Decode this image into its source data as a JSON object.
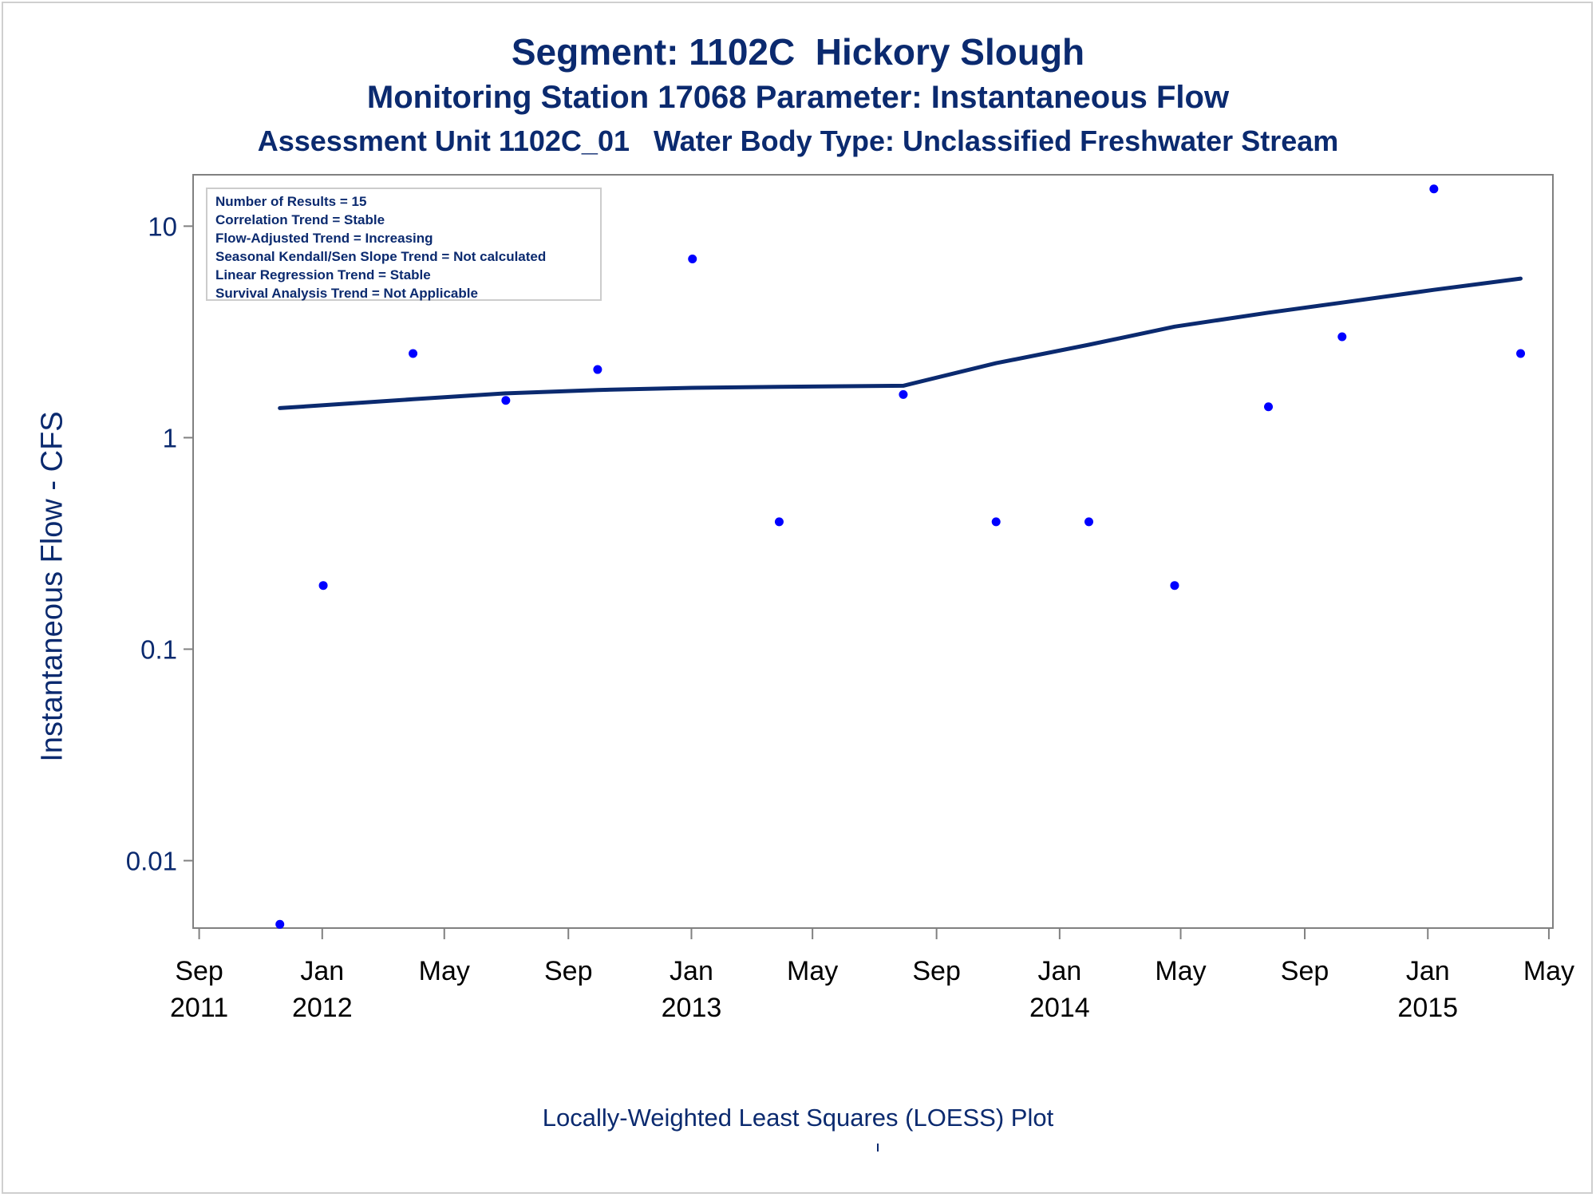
{
  "titles": {
    "line1": "Segment: 1102C  Hickory Slough",
    "line2": "Monitoring Station 17068 Parameter: Instantaneous Flow",
    "line3": "Assessment Unit 1102C_01   Water Body Type: Unclassified Freshwater Stream"
  },
  "footnote": "Locally-Weighted Least Squares (LOESS) Plot",
  "legend": [
    "Number of Results = 15",
    "Correlation Trend = Stable",
    "Flow-Adjusted Trend = Increasing",
    "Seasonal Kendall/Sen Slope Trend = Not calculated",
    "Linear Regression Trend = Stable",
    "Survival Analysis Trend = Not Applicable"
  ],
  "colors": {
    "text": "#0b2a6f",
    "points": "#0000ff",
    "line": "#0b2a6f",
    "axis": "#808080"
  },
  "chart_data": {
    "type": "scatter",
    "ylabel": "Instantaneous Flow - CFS",
    "xlabel": "",
    "yscale": "log",
    "ylim": [
      0.0048,
      17.5
    ],
    "xlim": [
      "2011-08-26",
      "2015-05-05"
    ],
    "grid": false,
    "legend_position": "top-left",
    "y_ticks": [
      {
        "value": 0.01,
        "label": "0.01"
      },
      {
        "value": 0.1,
        "label": "0.1"
      },
      {
        "value": 1,
        "label": "1"
      },
      {
        "value": 10,
        "label": "10"
      }
    ],
    "x_ticks": [
      {
        "date": "2011-09-01",
        "label": [
          "Sep",
          "2011"
        ]
      },
      {
        "date": "2012-01-01",
        "label": [
          "Jan",
          "2012"
        ]
      },
      {
        "date": "2012-05-01",
        "label": [
          "May",
          ""
        ]
      },
      {
        "date": "2012-09-01",
        "label": [
          "Sep",
          ""
        ]
      },
      {
        "date": "2013-01-01",
        "label": [
          "Jan",
          "2013"
        ]
      },
      {
        "date": "2013-05-01",
        "label": [
          "May",
          ""
        ]
      },
      {
        "date": "2013-09-01",
        "label": [
          "Sep",
          ""
        ]
      },
      {
        "date": "2014-01-01",
        "label": [
          "Jan",
          "2014"
        ]
      },
      {
        "date": "2014-05-01",
        "label": [
          "May",
          ""
        ]
      },
      {
        "date": "2014-09-01",
        "label": [
          "Sep",
          ""
        ]
      },
      {
        "date": "2015-01-01",
        "label": [
          "Jan",
          "2015"
        ]
      },
      {
        "date": "2015-05-01",
        "label": [
          "May",
          ""
        ]
      }
    ],
    "series": [
      {
        "kind": "scatter",
        "points": [
          {
            "x": "2011-11-20",
            "y": 0.005
          },
          {
            "x": "2012-01-02",
            "y": 0.2
          },
          {
            "x": "2012-03-31",
            "y": 2.5
          },
          {
            "x": "2012-07-01",
            "y": 1.5
          },
          {
            "x": "2012-09-30",
            "y": 2.1
          },
          {
            "x": "2013-01-02",
            "y": 7.0
          },
          {
            "x": "2013-03-29",
            "y": 0.4
          },
          {
            "x": "2013-07-30",
            "y": 1.6
          },
          {
            "x": "2013-10-30",
            "y": 0.4
          },
          {
            "x": "2014-01-30",
            "y": 0.4
          },
          {
            "x": "2014-04-25",
            "y": 0.2
          },
          {
            "x": "2014-07-27",
            "y": 1.4
          },
          {
            "x": "2014-10-08",
            "y": 3.0
          },
          {
            "x": "2015-01-07",
            "y": 15.0
          },
          {
            "x": "2015-04-03",
            "y": 2.5
          }
        ]
      },
      {
        "kind": "line",
        "points": [
          {
            "x": "2011-11-20",
            "y": 1.38
          },
          {
            "x": "2012-03-31",
            "y": 1.52
          },
          {
            "x": "2012-07-01",
            "y": 1.62
          },
          {
            "x": "2012-09-30",
            "y": 1.68
          },
          {
            "x": "2013-01-02",
            "y": 1.72
          },
          {
            "x": "2013-03-29",
            "y": 1.74
          },
          {
            "x": "2013-07-30",
            "y": 1.76
          },
          {
            "x": "2013-10-30",
            "y": 2.25
          },
          {
            "x": "2014-01-30",
            "y": 2.75
          },
          {
            "x": "2014-04-25",
            "y": 3.35
          },
          {
            "x": "2014-07-27",
            "y": 3.9
          },
          {
            "x": "2014-10-08",
            "y": 4.35
          },
          {
            "x": "2015-01-07",
            "y": 5.0
          },
          {
            "x": "2015-04-03",
            "y": 5.65
          }
        ]
      }
    ]
  }
}
